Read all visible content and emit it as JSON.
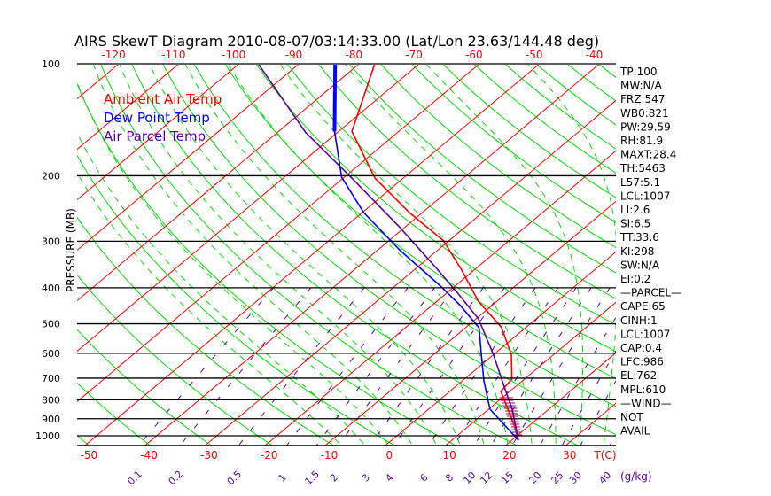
{
  "chart_data": {
    "type": "line",
    "subtype": "skew-t log-p",
    "title": "AIRS SkewT Diagram 2010-08-07/03:14:33.00 (Lat/Lon 23.63/144.48 deg)",
    "ylabel": "PRESSURE (MB)",
    "xlabel": "T(C)",
    "mixing_ratio_unit_label": "(g/kg)",
    "ylim": [
      1050,
      100
    ],
    "pressure_ticks": [
      100,
      200,
      300,
      400,
      500,
      600,
      700,
      800,
      900,
      1000
    ],
    "bottom_temp_ticks": [
      -50,
      -40,
      -30,
      -20,
      -10,
      0,
      10,
      20,
      30
    ],
    "top_temp_ticks": [
      -120,
      -110,
      -100,
      -90,
      -80,
      -70,
      -60,
      -50,
      -40
    ],
    "mixing_ratio_ticks": [
      "0.1",
      "0.2",
      "0.5",
      "1",
      "1.5",
      "2",
      "3",
      "4",
      "6",
      "8",
      "10",
      "12",
      "15",
      "20",
      "25",
      "30",
      "40"
    ],
    "legend": [
      {
        "label": "Ambient Air Temp",
        "color": "#ff0000"
      },
      {
        "label": "Dew Point Temp",
        "color": "#0000ff"
      },
      {
        "label": "Air Parcel Temp",
        "color": "#5a00a0"
      }
    ],
    "series": [
      {
        "name": "Ambient Air Temp",
        "color": "#ff0000",
        "points": [
          [
            100,
            -77.4
          ],
          [
            152,
            -67.8
          ],
          [
            203,
            -54.7
          ],
          [
            251,
            -42.2
          ],
          [
            299,
            -30.9
          ],
          [
            359,
            -22.0
          ],
          [
            435,
            -13.1
          ],
          [
            510,
            -4.2
          ],
          [
            604,
            2.9
          ],
          [
            704,
            7.9
          ],
          [
            760,
            8.5
          ],
          [
            848,
            13.2
          ],
          [
            936,
            17.4
          ],
          [
            1028,
            21.1
          ]
        ]
      },
      {
        "name": "Dew Point Temp",
        "color": "#0000ff",
        "points": [
          [
            100,
            -84.0
          ],
          [
            152,
            -70.7
          ],
          [
            202,
            -60.4
          ],
          [
            251,
            -49.8
          ],
          [
            318,
            -36.1
          ],
          [
            396,
            -22.4
          ],
          [
            447,
            -15.2
          ],
          [
            513,
            -7.7
          ],
          [
            604,
            -2.1
          ],
          [
            712,
            3.6
          ],
          [
            848,
            10.2
          ],
          [
            1028,
            21.1
          ]
        ]
      },
      {
        "name": "Air Parcel Temp",
        "color": "#5a00a0",
        "points": [
          [
            100,
            -96.8
          ],
          [
            153,
            -75.3
          ],
          [
            207,
            -57.4
          ],
          [
            273,
            -41.3
          ],
          [
            349,
            -27.5
          ],
          [
            411,
            -18.5
          ],
          [
            485,
            -9.6
          ],
          [
            604,
            -0.1
          ],
          [
            752,
            8.9
          ],
          [
            848,
            13.9
          ],
          [
            1028,
            21.1
          ]
        ]
      }
    ],
    "cape_hatch_range_mb": [
      790,
      1000
    ],
    "indices": [
      "TP:100",
      "MW:N/A",
      "FRZ:547",
      "WB0:821",
      "PW:29.59",
      "RH:81.9",
      "MAXT:28.4",
      "TH:5463",
      "L57:5.1",
      "LCL:1007",
      "LI:2.6",
      "SI:6.5",
      "TT:33.6",
      "KI:298",
      "SW:N/A",
      "EI:0.2",
      "—PARCEL—",
      "CAPE:65",
      "CINH:1",
      "LCL:1007",
      "CAP:0.4",
      "LFC:986",
      "EL:762",
      "MPL:610",
      "—WIND—",
      " NOT",
      "AVAIL"
    ],
    "colors": {
      "isotherm": "#ff0000",
      "dry_adiabat": "#00e000",
      "moist_adiabat": "#00e000",
      "mixing_ratio": "#5a00a0",
      "isobar": "#000000"
    }
  }
}
